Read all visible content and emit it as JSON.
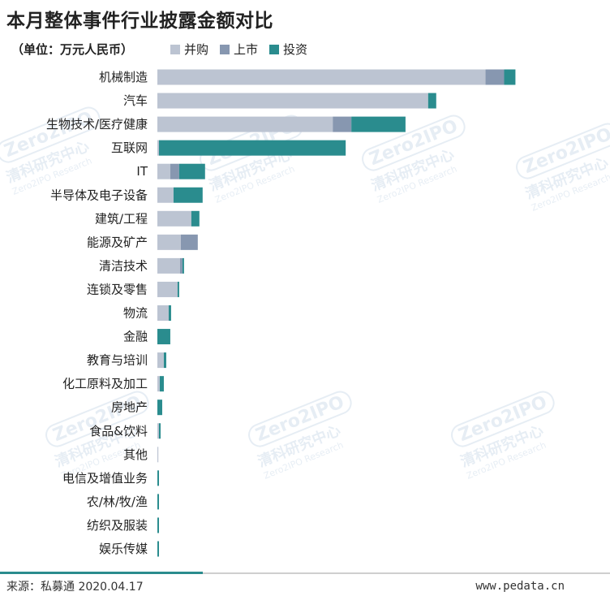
{
  "title": "本月整体事件行业披露金额对比",
  "unit": "（单位：万元人民币）",
  "legend": [
    {
      "name": "并购",
      "color": "#bcc4d2"
    },
    {
      "name": "上市",
      "color": "#8797b0"
    },
    {
      "name": "投资",
      "color": "#2a8c8e"
    }
  ],
  "watermark": {
    "logo": "Zero2IPO",
    "cn": "清科研究中心",
    "en": "Zero2IPO Research"
  },
  "footer": {
    "source": "来源：私募通 2020.04.17",
    "site": "www.pedata.cn"
  },
  "chart_data": {
    "type": "bar",
    "orientation": "horizontal",
    "stacked": true,
    "categories": [
      "机械制造",
      "汽车",
      "生物技术/医疗健康",
      "互联网",
      "IT",
      "半导体及电子设备",
      "建筑/工程",
      "能源及矿产",
      "清洁技术",
      "连锁及零售",
      "物流",
      "金融",
      "教育与培训",
      "化工原料及加工",
      "房地产",
      "食品&饮料",
      "其他",
      "电信及增值业务",
      "农/林/牧/渔",
      "纺织及服装",
      "娱乐传媒"
    ],
    "series": [
      {
        "name": "并购",
        "values": [
          406,
          335,
          217,
          2,
          16,
          20,
          42,
          29,
          28,
          25,
          14,
          0,
          8,
          3,
          0,
          2,
          1,
          0,
          0,
          0,
          0
        ]
      },
      {
        "name": "上市",
        "values": [
          23,
          0,
          23,
          0,
          11,
          0,
          0,
          21,
          3,
          0,
          0,
          0,
          0,
          0,
          0,
          0,
          0,
          0,
          0,
          0,
          0
        ]
      },
      {
        "name": "投资",
        "values": [
          14,
          10,
          67,
          231,
          32,
          36,
          10,
          0,
          2,
          2,
          3,
          16,
          3,
          5,
          6,
          2,
          0,
          2,
          2,
          2,
          2
        ]
      }
    ],
    "xlim": [
      0,
      560
    ],
    "grid": false,
    "legend_position": "top"
  }
}
